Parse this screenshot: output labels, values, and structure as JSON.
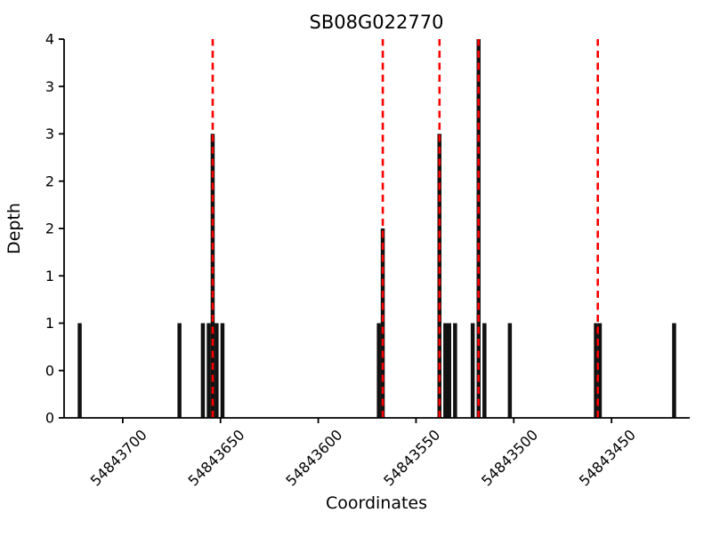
{
  "chart_data": {
    "type": "bar",
    "title": "SB08G022770",
    "xlabel": "Coordinates",
    "ylabel": "Depth",
    "grid": false,
    "x_axis": {
      "reversed": true,
      "lim": [
        54843730,
        54843410
      ],
      "ticks": [
        54843700,
        54843650,
        54843600,
        54843550,
        54843500,
        54843450
      ],
      "tick_labels": [
        "54843700",
        "54843650",
        "54843600",
        "54843550",
        "54843500",
        "54843450"
      ],
      "tick_rotation_deg": 45
    },
    "y_axis": {
      "lim": [
        0,
        4
      ],
      "ticks": [
        0,
        0.5,
        1,
        1.5,
        2,
        2.5,
        3,
        3.5,
        4
      ],
      "tick_labels": [
        "0",
        "0",
        "1",
        "1",
        "2",
        "2",
        "3",
        "3",
        "4"
      ]
    },
    "bars": [
      {
        "coord": 54843722,
        "depth": 1
      },
      {
        "coord": 54843671,
        "depth": 1
      },
      {
        "coord": 54843659,
        "depth": 1
      },
      {
        "coord": 54843656,
        "depth": 1
      },
      {
        "coord": 54843654,
        "depth": 3
      },
      {
        "coord": 54843652,
        "depth": 1
      },
      {
        "coord": 54843649,
        "depth": 1
      },
      {
        "coord": 54843569,
        "depth": 1
      },
      {
        "coord": 54843567,
        "depth": 2
      },
      {
        "coord": 54843538,
        "depth": 3
      },
      {
        "coord": 54843535,
        "depth": 1
      },
      {
        "coord": 54843533,
        "depth": 1
      },
      {
        "coord": 54843530,
        "depth": 1
      },
      {
        "coord": 54843521,
        "depth": 1
      },
      {
        "coord": 54843518,
        "depth": 4
      },
      {
        "coord": 54843515,
        "depth": 1
      },
      {
        "coord": 54843502,
        "depth": 1
      },
      {
        "coord": 54843458,
        "depth": 1
      },
      {
        "coord": 54843456,
        "depth": 1
      },
      {
        "coord": 54843418,
        "depth": 1
      }
    ],
    "marker_lines": {
      "style": "dashed",
      "color": "#ff0000",
      "coords": [
        54843654,
        54843567,
        54843538,
        54843518,
        54843457
      ]
    },
    "colors": {
      "bar": "#111111",
      "axis": "#000000",
      "marker": "#ff0000"
    }
  }
}
